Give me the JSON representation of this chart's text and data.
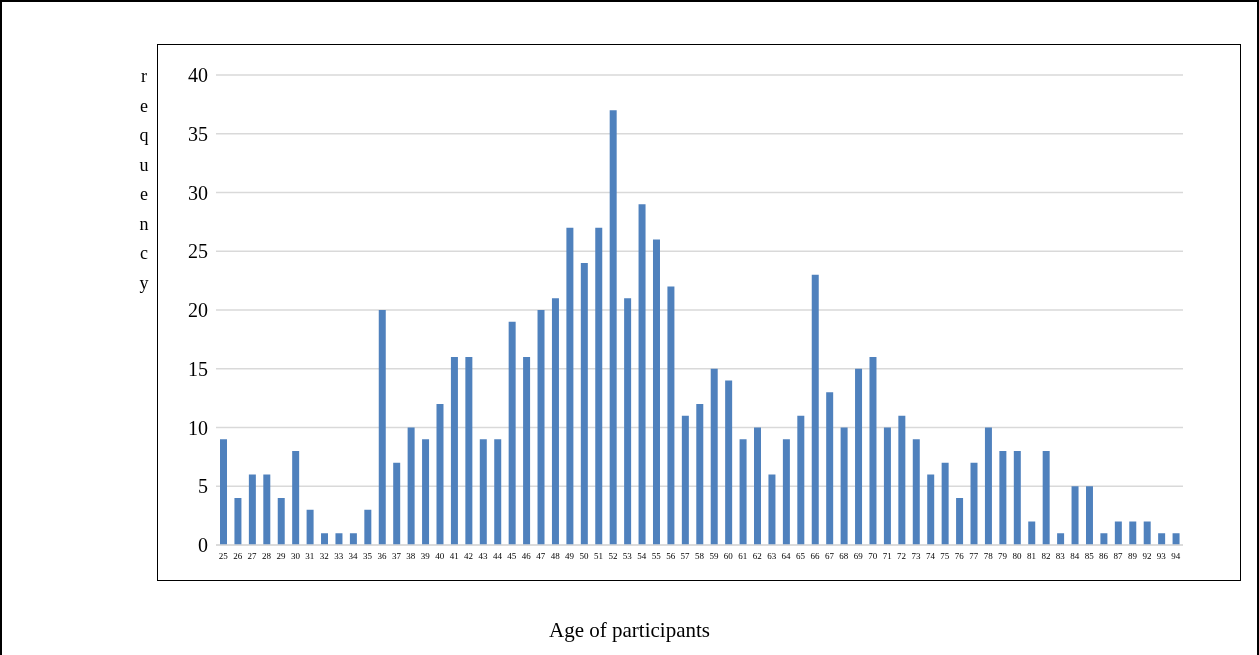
{
  "chart_data": {
    "type": "bar",
    "xlabel": "Age of participants",
    "ylabel": "requency",
    "categories": [
      "25",
      "26",
      "27",
      "28",
      "29",
      "30",
      "31",
      "32",
      "33",
      "34",
      "35",
      "36",
      "37",
      "38",
      "39",
      "40",
      "41",
      "42",
      "43",
      "44",
      "45",
      "46",
      "47",
      "48",
      "49",
      "50",
      "51",
      "52",
      "53",
      "54",
      "55",
      "56",
      "57",
      "58",
      "59",
      "60",
      "61",
      "62",
      "63",
      "64",
      "65",
      "66",
      "67",
      "68",
      "69",
      "70",
      "71",
      "72",
      "73",
      "74",
      "75",
      "76",
      "77",
      "78",
      "79",
      "80",
      "81",
      "82",
      "83",
      "84",
      "85",
      "86",
      "87",
      "89",
      "92",
      "93",
      "94"
    ],
    "values": [
      9,
      4,
      6,
      6,
      4,
      8,
      3,
      1,
      1,
      1,
      3,
      20,
      7,
      10,
      9,
      12,
      16,
      16,
      9,
      9,
      19,
      16,
      20,
      21,
      27,
      24,
      27,
      37,
      21,
      29,
      26,
      22,
      11,
      12,
      15,
      14,
      9,
      10,
      6,
      9,
      11,
      23,
      13,
      10,
      15,
      16,
      10,
      11,
      9,
      6,
      7,
      4,
      7,
      10,
      8,
      8,
      2,
      8,
      1,
      5,
      5,
      1,
      2,
      2,
      2,
      1,
      1
    ],
    "color": "#4f81bd",
    "ylim": [
      0,
      40
    ],
    "yticks": [
      0,
      5,
      10,
      15,
      20,
      25,
      30,
      35,
      40
    ],
    "grid": "y"
  }
}
